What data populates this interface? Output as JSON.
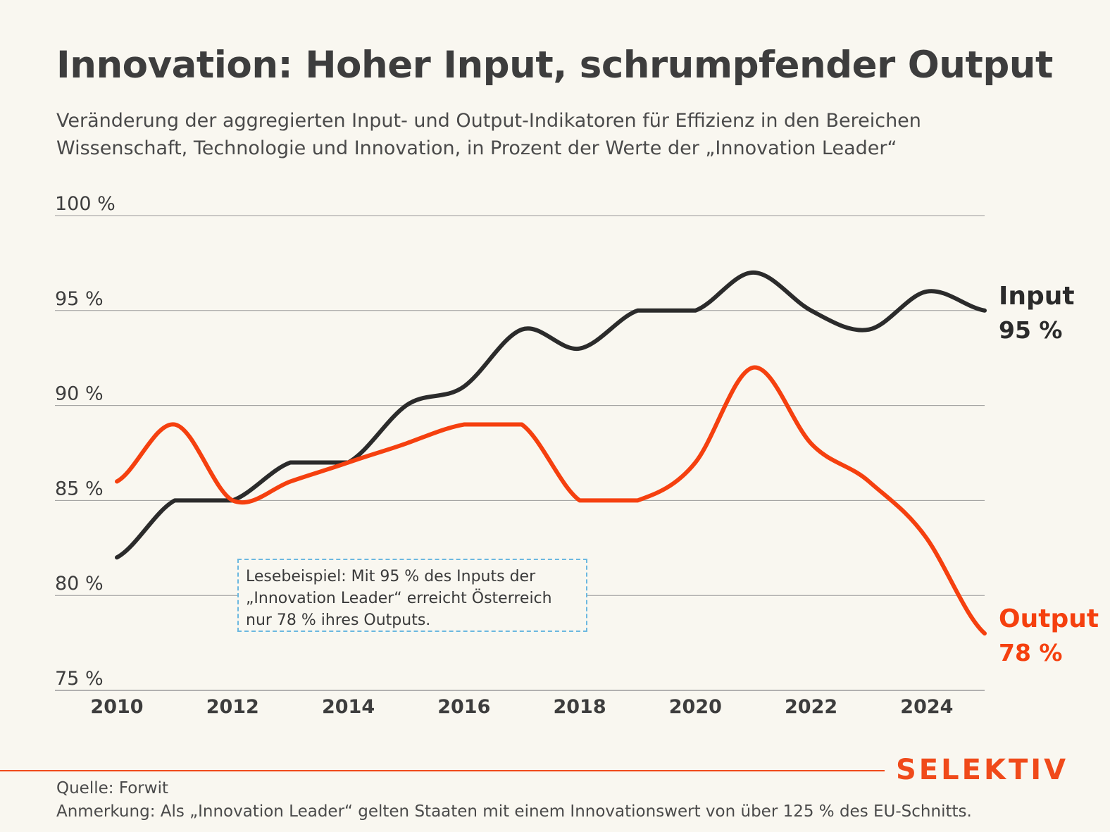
{
  "header": {
    "title": "Innovation: Hoher Input, schrumpfender Output",
    "subtitle_line1": "Veränderung der aggregierten Input- und Output-Indikatoren für Effizienz in den Bereichen",
    "subtitle_line2": "Wissenschaft, Technologie und Innovation, in Prozent der Werte der „Innovation Leader“"
  },
  "annotation": {
    "line1": "Lesebeispiel: Mit 95 % des Inputs der",
    "line2": "„Innovation Leader“ erreicht Österreich",
    "line3": "nur 78 % ihres Outputs."
  },
  "footer": {
    "source": "Quelle: Forwit",
    "note": "Anmerkung: Als „Innovation Leader“ gelten Staaten mit einem Innovationswert von über 125 % des EU-Schnitts.",
    "logo": "SELEKTIV"
  },
  "colors": {
    "input": "#2b2b2b",
    "output": "#f5400f",
    "grid": "#9a9a9a",
    "accent": "#f04a1a"
  },
  "chart_data": {
    "type": "line",
    "x": [
      2010,
      2011,
      2012,
      2013,
      2014,
      2015,
      2016,
      2017,
      2018,
      2019,
      2020,
      2021,
      2022,
      2023,
      2024,
      2025
    ],
    "xticks": [
      "2010",
      "2012",
      "2014",
      "2016",
      "2018",
      "2020",
      "2022",
      "2024"
    ],
    "yticks": [
      "75 %",
      "80 %",
      "85 %",
      "90 %",
      "95 %",
      "100 %"
    ],
    "ylim": [
      75,
      100
    ],
    "xlim": [
      2010,
      2025
    ],
    "grid": true,
    "series": [
      {
        "name": "Input",
        "end_label": "95 %",
        "color": "#2b2b2b",
        "values": [
          82,
          85,
          85,
          87,
          87,
          90,
          91,
          94,
          93,
          95,
          95,
          97,
          95,
          94,
          96,
          95
        ]
      },
      {
        "name": "Output",
        "end_label": "78 %",
        "color": "#f5400f",
        "values": [
          86,
          89,
          85,
          86,
          87,
          88,
          89,
          89,
          85,
          85,
          87,
          92,
          88,
          86,
          83,
          78
        ]
      }
    ]
  }
}
